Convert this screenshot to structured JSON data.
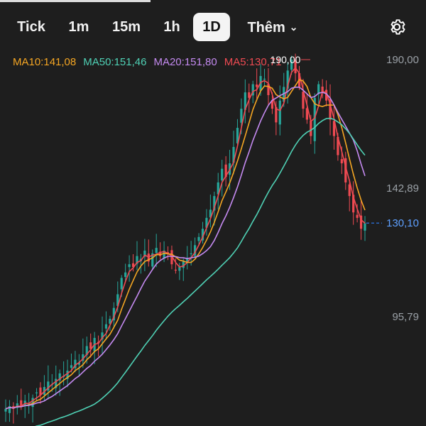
{
  "toolbar": {
    "tabs": [
      {
        "label": "Tick",
        "active": false
      },
      {
        "label": "1m",
        "active": false
      },
      {
        "label": "15m",
        "active": false
      },
      {
        "label": "1h",
        "active": false
      },
      {
        "label": "1D",
        "active": true
      },
      {
        "label": "Thêm",
        "active": false
      }
    ],
    "more_icon": "chevron-down-icon",
    "settings_icon": "gear-icon"
  },
  "legend": {
    "ma10": {
      "label": "MA10:141,08",
      "color": "#f5a623"
    },
    "ma50": {
      "label": "MA50:151,46",
      "color": "#4fd1b5"
    },
    "ma20": {
      "label": "MA20:151,80",
      "color": "#c48af0"
    },
    "ma5": {
      "label": "MA5:130,71",
      "color": "#ef4a52"
    }
  },
  "chart_data": {
    "type": "candlestick",
    "y_ticks": [
      {
        "value": 190.0,
        "label": "190,00"
      },
      {
        "value": 142.89,
        "label": "142,89"
      },
      {
        "value": 95.79,
        "label": "95,79"
      }
    ],
    "ylim": [
      55,
      200
    ],
    "peak": {
      "value": 190.0,
      "label": "190,00"
    },
    "last_price": {
      "value": 130.1,
      "label": "130,10"
    },
    "colors": {
      "up": "#26a69a",
      "down": "#ef4a52",
      "last_price": "#2f7df6"
    },
    "close_series": [
      62,
      63,
      62,
      64,
      63,
      65,
      64,
      66,
      68,
      67,
      70,
      72,
      71,
      73,
      75,
      74,
      76,
      78,
      80,
      79,
      82,
      85,
      84,
      88,
      86,
      90,
      93,
      95,
      99,
      104,
      110,
      112,
      115,
      114,
      118,
      117,
      120,
      116,
      119,
      121,
      118,
      120,
      119,
      115,
      113,
      114,
      116,
      117,
      119,
      122,
      125,
      128,
      132,
      135,
      140,
      145,
      150,
      147,
      152,
      158,
      165,
      172,
      178,
      176,
      181,
      180,
      184,
      183,
      177,
      172,
      167,
      175,
      180,
      186,
      190,
      185,
      180,
      172,
      168,
      162,
      176,
      181,
      178,
      175,
      168,
      162,
      155,
      152,
      145,
      140,
      134,
      132,
      128,
      130
    ]
  }
}
